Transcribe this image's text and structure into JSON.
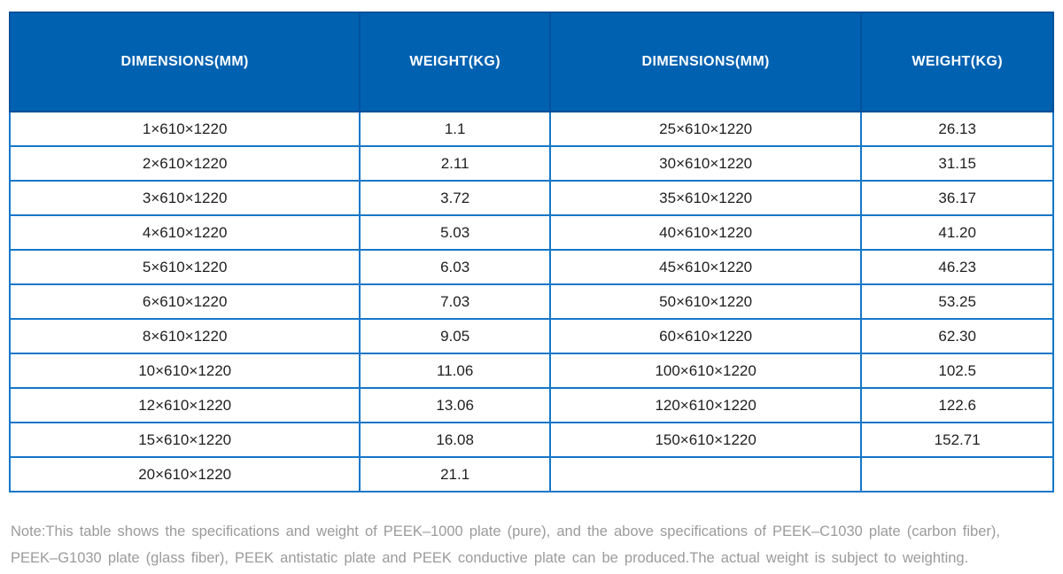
{
  "table": {
    "headers": [
      "DIMENSIONS(MM)",
      "WEIGHT(KG)",
      "DIMENSIONS(MM)",
      "WEIGHT(KG)"
    ],
    "rows": [
      [
        "1×610×1220",
        "1.1",
        "25×610×1220",
        "26.13"
      ],
      [
        "2×610×1220",
        "2.11",
        "30×610×1220",
        "31.15"
      ],
      [
        "3×610×1220",
        "3.72",
        "35×610×1220",
        "36.17"
      ],
      [
        "4×610×1220",
        "5.03",
        "40×610×1220",
        "41.20"
      ],
      [
        "5×610×1220",
        "6.03",
        "45×610×1220",
        "46.23"
      ],
      [
        "6×610×1220",
        "7.03",
        "50×610×1220",
        "53.25"
      ],
      [
        "8×610×1220",
        "9.05",
        "60×610×1220",
        "62.30"
      ],
      [
        "10×610×1220",
        "11.06",
        "100×610×1220",
        "102.5"
      ],
      [
        "12×610×1220",
        "13.06",
        "120×610×1220",
        "122.6"
      ],
      [
        "15×610×1220",
        "16.08",
        "150×610×1220",
        "152.71"
      ],
      [
        "20×610×1220",
        "21.1",
        "",
        ""
      ]
    ]
  },
  "note": {
    "line1": "Note:This table shows the specifications and weight of PEEK–1000 plate (pure), and the above specifications of PEEK–C1030 plate (carbon fiber),",
    "line2": "PEEK–G1030 plate (glass fiber), PEEK antistatic plate and PEEK conductive plate can be produced.The actual weight is subject to weighting."
  },
  "colors": {
    "header_bg": "#0061b1",
    "header_border": "#02519c",
    "body_border": "#1577c8",
    "body_text": "#1f1f1f",
    "note_text": "#9b9b9b"
  }
}
